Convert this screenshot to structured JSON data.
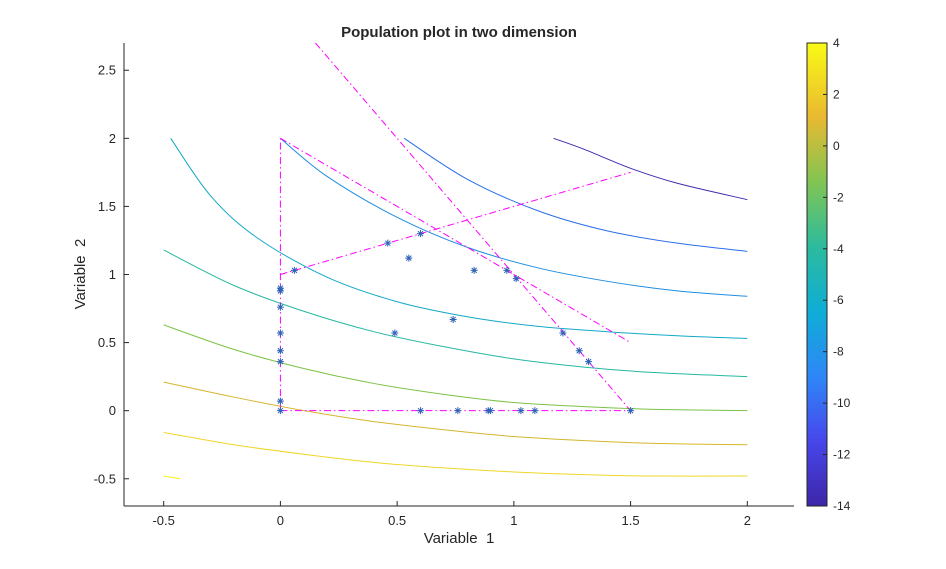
{
  "chart_data": {
    "type": "scatter",
    "title": "Population plot in two dimension",
    "xlabel": "Variable  1",
    "ylabel": "Variable  2",
    "xlim": [
      -0.67,
      2.2
    ],
    "ylim": [
      -0.7,
      2.7
    ],
    "xticks": [
      "-0.5",
      "0",
      "0.5",
      "1",
      "1.5",
      "2"
    ],
    "xtick_values": [
      -0.5,
      0,
      0.5,
      1,
      1.5,
      2
    ],
    "yticks": [
      "-0.5",
      "0",
      "0.5",
      "1",
      "1.5",
      "2",
      "2.5"
    ],
    "ytick_values": [
      -0.5,
      0,
      0.5,
      1,
      1.5,
      2,
      2.5
    ],
    "grid": false,
    "colormap": "parula",
    "colorbar": {
      "range": [
        -14,
        4
      ],
      "ticks": [
        "4",
        "2",
        "0",
        "-2",
        "-4",
        "-6",
        "-8",
        "-10",
        "-12",
        "-14"
      ],
      "tick_values": [
        4,
        2,
        0,
        -2,
        -4,
        -6,
        -8,
        -10,
        -12,
        -14
      ]
    },
    "contours": [
      {
        "color": "#3d2fb0",
        "x": [
          1.17,
          1.3,
          1.5,
          1.7,
          2.0
        ],
        "y": [
          2.0,
          1.92,
          1.78,
          1.67,
          1.55
        ]
      },
      {
        "color": "#2a6ee8",
        "x": [
          0.53,
          0.8,
          1.1,
          1.4,
          1.7,
          2.0
        ],
        "y": [
          2.0,
          1.7,
          1.47,
          1.32,
          1.23,
          1.17
        ]
      },
      {
        "color": "#1f8ee0",
        "x": [
          0.0,
          0.2,
          0.5,
          0.8,
          1.1,
          1.4,
          1.7,
          2.0
        ],
        "y": [
          2.0,
          1.72,
          1.42,
          1.2,
          1.05,
          0.95,
          0.88,
          0.84
        ]
      },
      {
        "color": "#13a9c7",
        "x": [
          -0.47,
          -0.3,
          -0.1,
          0.2,
          0.5,
          0.8,
          1.1,
          1.4,
          1.7,
          2.0
        ],
        "y": [
          2.0,
          1.58,
          1.27,
          0.98,
          0.8,
          0.69,
          0.62,
          0.58,
          0.55,
          0.53
        ]
      },
      {
        "color": "#26b8a0",
        "x": [
          -0.5,
          -0.2,
          0.1,
          0.4,
          0.7,
          1.0,
          1.3,
          1.6,
          2.0
        ],
        "y": [
          1.18,
          0.92,
          0.73,
          0.58,
          0.47,
          0.38,
          0.32,
          0.28,
          0.25
        ]
      },
      {
        "color": "#7cc345",
        "x": [
          -0.5,
          -0.2,
          0.1,
          0.4,
          0.7,
          1.0,
          1.3,
          1.6,
          2.0
        ],
        "y": [
          0.63,
          0.45,
          0.31,
          0.2,
          0.12,
          0.06,
          0.03,
          0.01,
          0.0
        ]
      },
      {
        "color": "#d6b52e",
        "x": [
          -0.5,
          -0.2,
          0.1,
          0.4,
          0.7,
          1.0,
          1.3,
          1.6,
          2.0
        ],
        "y": [
          0.21,
          0.1,
          0.0,
          -0.08,
          -0.14,
          -0.19,
          -0.22,
          -0.24,
          -0.25
        ]
      },
      {
        "color": "#f0d62a",
        "x": [
          -0.5,
          -0.2,
          0.1,
          0.4,
          0.7,
          1.0,
          1.3,
          1.6,
          2.0
        ],
        "y": [
          -0.16,
          -0.25,
          -0.32,
          -0.38,
          -0.42,
          -0.45,
          -0.47,
          -0.48,
          -0.48
        ]
      },
      {
        "color": "#f8f20e",
        "x": [
          -0.5,
          -0.43
        ],
        "y": [
          -0.48,
          -0.5
        ]
      }
    ],
    "constraints": [
      {
        "color": "#ff00ff",
        "x": [
          0,
          0
        ],
        "y": [
          0,
          2
        ]
      },
      {
        "color": "#ff00ff",
        "x": [
          0,
          1.5
        ],
        "y": [
          0,
          0
        ]
      },
      {
        "color": "#ff00ff",
        "x": [
          0,
          1.5
        ],
        "y": [
          1,
          1.75
        ]
      },
      {
        "color": "#ff00ff",
        "x": [
          0,
          1.5
        ],
        "y": [
          2,
          0.5
        ]
      },
      {
        "color": "#ff00ff",
        "x": [
          0.15,
          1.5
        ],
        "y": [
          2.7,
          0
        ]
      }
    ],
    "series": [
      {
        "marker": "*",
        "color": "#2e62b7",
        "x": [
          0.0,
          0.0,
          0.0,
          0.0,
          0.0,
          0.0,
          0.0,
          0.0,
          0.06,
          0.46,
          0.6,
          0.55,
          0.49,
          0.74,
          0.83,
          0.97,
          1.01,
          0.6,
          0.76,
          0.89,
          0.9,
          1.03,
          1.09,
          1.21,
          1.28,
          1.32,
          1.5
        ],
        "y": [
          0.0,
          0.07,
          0.36,
          0.44,
          0.57,
          0.76,
          0.88,
          0.9,
          1.03,
          1.23,
          1.3,
          1.12,
          0.57,
          0.67,
          1.03,
          1.03,
          0.97,
          0.0,
          0.0,
          0.0,
          0.0,
          0.0,
          0.0,
          0.57,
          0.44,
          0.36,
          0.0
        ]
      }
    ]
  }
}
